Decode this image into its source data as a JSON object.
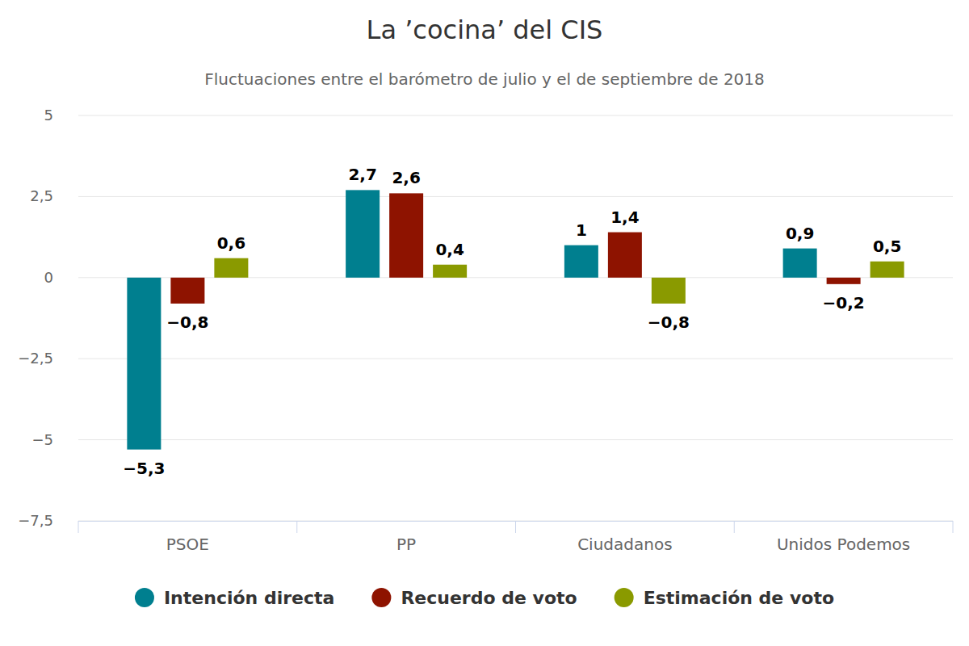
{
  "chart_data": {
    "type": "bar",
    "title": "La ’cocina’ del CIS",
    "subtitle": "Fluctuaciones entre el barómetro de julio y el de septiembre de 2018",
    "categories": [
      "PSOE",
      "PP",
      "Ciudadanos",
      "Unidos Podemos"
    ],
    "series": [
      {
        "name": "Intención directa",
        "color": "#007f8f",
        "values": [
          -5.3,
          2.7,
          1,
          0.9
        ],
        "value_labels": [
          "−5,3",
          "2,7",
          "1",
          "0,9"
        ]
      },
      {
        "name": "Recuerdo de voto",
        "color": "#8e1300",
        "values": [
          -0.8,
          2.6,
          1.4,
          -0.2
        ],
        "value_labels": [
          "−0,8",
          "2,6",
          "1,4",
          "−0,2"
        ]
      },
      {
        "name": "Estimación de voto",
        "color": "#8a9a00",
        "values": [
          0.6,
          0.4,
          -0.8,
          0.5
        ],
        "value_labels": [
          "0,6",
          "0,4",
          "−0,8",
          "0,5"
        ]
      }
    ],
    "ylim": [
      -7.5,
      5
    ],
    "yticks": [
      5,
      {
        "value": 2.5,
        "label": "2,5"
      },
      0,
      {
        "value": -2.5,
        "label": "−2,5"
      },
      {
        "value": -5,
        "label": "−5"
      },
      {
        "value": -7.5,
        "label": "−7,5"
      }
    ],
    "grid": true,
    "data_labels": true,
    "legend": "bottom"
  }
}
